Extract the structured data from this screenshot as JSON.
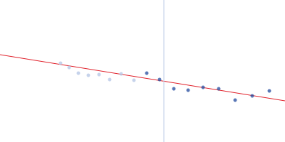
{
  "chart_data": {
    "type": "scatter",
    "xlim": [
      0,
      400
    ],
    "ylim": [
      0,
      200
    ],
    "tick_labels": false,
    "grid": false,
    "series": [
      {
        "type": "scatter",
        "color": "#b8c8e6",
        "marker": "circle",
        "x": [
          85,
          97,
          110,
          124,
          139,
          154,
          170,
          188
        ],
        "values": [
          111,
          105,
          97,
          94,
          95,
          88,
          96,
          87
        ]
      },
      {
        "type": "scatter",
        "color": "#2f55a4",
        "marker": "circle",
        "x": [
          206,
          224,
          244,
          264,
          285,
          307,
          330,
          354,
          378
        ],
        "values": [
          97,
          88,
          75,
          73,
          77,
          75,
          59,
          65,
          72
        ]
      },
      {
        "type": "line",
        "color": "#e0202a",
        "line_style": "solid",
        "x": [
          0,
          400
        ],
        "values": [
          123,
          58
        ]
      },
      {
        "type": "line",
        "color": "#c8d4ec",
        "line_style": "solid",
        "x": [
          230,
          230
        ],
        "values": [
          0,
          200
        ]
      }
    ]
  }
}
